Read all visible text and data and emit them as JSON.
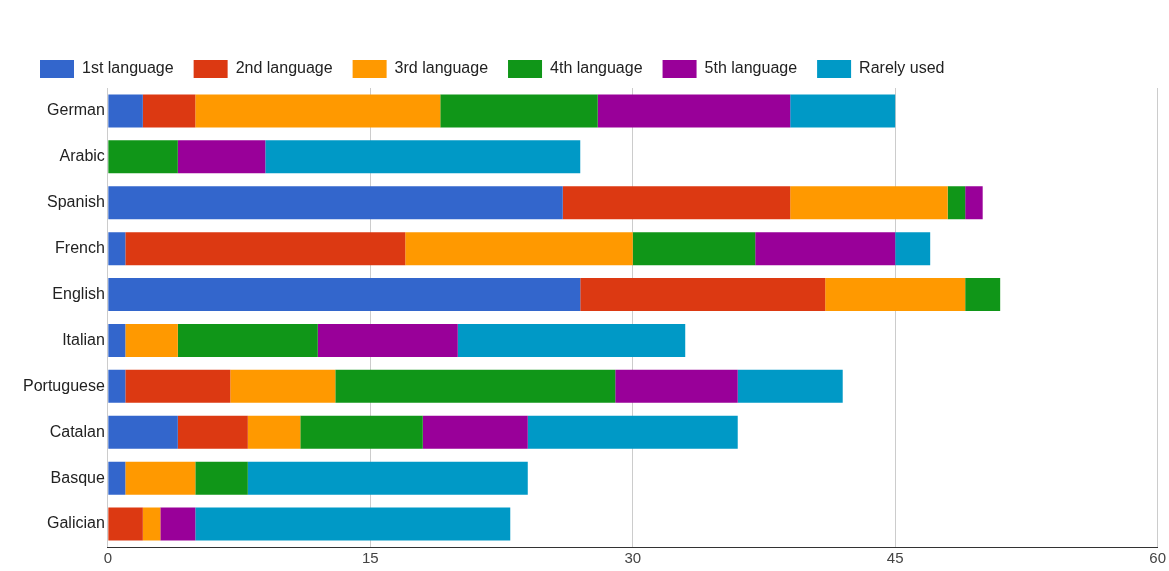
{
  "chart_data": {
    "type": "bar",
    "orientation": "horizontal",
    "stacked": true,
    "categories": [
      "German",
      "Arabic",
      "Spanish",
      "French",
      "English",
      "Italian",
      "Portuguese",
      "Catalan",
      "Basque",
      "Galician"
    ],
    "series": [
      {
        "name": "1st language",
        "color": "#3366cc",
        "values": [
          2,
          0,
          26,
          1,
          27,
          1,
          1,
          4,
          1,
          0
        ]
      },
      {
        "name": "2nd language",
        "color": "#dc3912",
        "values": [
          3,
          0,
          13,
          16,
          14,
          0,
          6,
          4,
          0,
          2
        ]
      },
      {
        "name": "3rd language",
        "color": "#ff9900",
        "values": [
          14,
          0,
          9,
          13,
          8,
          3,
          6,
          3,
          4,
          1
        ]
      },
      {
        "name": "4th language",
        "color": "#109618",
        "values": [
          9,
          4,
          1,
          7,
          2,
          8,
          16,
          7,
          3,
          0
        ]
      },
      {
        "name": "5th language",
        "color": "#990099",
        "values": [
          11,
          5,
          1,
          8,
          0,
          8,
          7,
          6,
          0,
          2
        ]
      },
      {
        "name": "Rarely used",
        "color": "#0099c6",
        "values": [
          6,
          18,
          0,
          2,
          0,
          13,
          6,
          12,
          16,
          18
        ]
      }
    ],
    "xlim": [
      0,
      60
    ],
    "xticks": [
      0,
      15,
      30,
      45,
      60
    ],
    "grid": "x",
    "legend": "top"
  }
}
